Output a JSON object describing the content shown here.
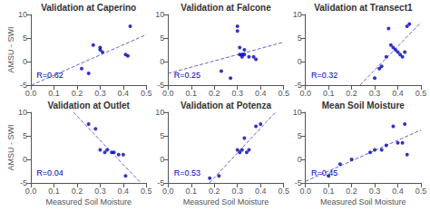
{
  "chart_data": [
    {
      "type": "scatter",
      "title": "Validation at Caperino",
      "annotation": "R=0.62",
      "ylabel": "AMSU - SWI",
      "series": [
        {
          "type": "scatter",
          "color": "#0000bb",
          "x": [
            0.22,
            0.25,
            0.27,
            0.3,
            0.3,
            0.31,
            0.41,
            0.42,
            0.43
          ],
          "values": [
            -1.5,
            -2.5,
            3.5,
            3.0,
            2.5,
            2.0,
            1.5,
            1.2,
            7.5
          ]
        },
        {
          "type": "line",
          "line_style": "dashed",
          "color": "#6666cc",
          "x": [
            0.0025,
            0.5
          ],
          "values": [
            -5,
            5.717
          ]
        }
      ],
      "xlim": [
        0,
        0.5
      ],
      "ylim": [
        -5,
        10
      ],
      "xticks": [
        {
          "value": 0,
          "label": "0.0"
        },
        0.1,
        0.2,
        0.3,
        0.4,
        0.5
      ],
      "yticks": [
        -5,
        0,
        5,
        10
      ],
      "grid": false
    },
    {
      "type": "scatter",
      "title": "Validation at Falcone",
      "annotation": "R=0.25",
      "series": [
        {
          "type": "scatter",
          "color": "#0000bb",
          "x": [
            0.23,
            0.27,
            0.3,
            0.3,
            0.31,
            0.31,
            0.32,
            0.32,
            0.33,
            0.33,
            0.35,
            0.37,
            0.38
          ],
          "values": [
            -2.0,
            -3.5,
            7.5,
            6.5,
            3.0,
            1.5,
            1.5,
            1.0,
            2.5,
            1.5,
            1.0,
            1.0,
            0.5
          ]
        },
        {
          "type": "line",
          "line_style": "dashed",
          "color": "#6666cc",
          "x": [
            0,
            0.5
          ],
          "values": [
            -2.5107,
            4.1203
          ]
        }
      ],
      "xlim": [
        0,
        0.5
      ],
      "ylim": [
        -5,
        10
      ],
      "xticks": [
        {
          "value": 0,
          "label": "0.0"
        },
        0.1,
        0.2,
        0.3,
        0.4,
        0.5
      ],
      "yticks": [
        -5,
        0,
        5,
        10
      ],
      "grid": false
    },
    {
      "type": "scatter",
      "title": "Validation at Transect1",
      "annotation": "R=0.32",
      "series": [
        {
          "type": "scatter",
          "color": "#0000bb",
          "x": [
            0.3,
            0.32,
            0.33,
            0.35,
            0.36,
            0.37,
            0.38,
            0.39,
            0.4,
            0.41,
            0.42,
            0.43,
            0.44,
            0.45
          ],
          "values": [
            -3.5,
            -1.5,
            -1.0,
            1.0,
            7.0,
            3.5,
            3.0,
            2.5,
            2.0,
            1.5,
            1.0,
            2.0,
            7.5,
            8.0
          ]
        },
        {
          "type": "line",
          "line_style": "dashed",
          "color": "#6666cc",
          "x": [
            0.2363,
            0.5
          ],
          "values": [
            -5,
            8.3029
          ]
        }
      ],
      "xlim": [
        0,
        0.5
      ],
      "ylim": [
        -5,
        10
      ],
      "xticks": [
        {
          "value": 0,
          "label": "0.0"
        },
        0.1,
        0.2,
        0.3,
        0.4,
        0.5
      ],
      "yticks": [
        -5,
        0,
        5,
        10
      ],
      "grid": false
    },
    {
      "type": "scatter",
      "title": "Validation at Outlet",
      "annotation": "R=0.04",
      "xlabel": "Measured Soil Moisture",
      "ylabel": "AMSU - SWI",
      "series": [
        {
          "type": "scatter",
          "color": "#0000bb",
          "x": [
            0.25,
            0.28,
            0.3,
            0.32,
            0.33,
            0.35,
            0.36,
            0.38,
            0.4,
            0.41
          ],
          "values": [
            7.5,
            6.5,
            2.0,
            1.5,
            2.0,
            1.5,
            1.5,
            1.0,
            1.0,
            -3.5
          ]
        },
        {
          "type": "line",
          "line_style": "dashed",
          "color": "#6666cc",
          "x": [
            0.1844,
            0.476
          ],
          "values": [
            10,
            -5
          ]
        }
      ],
      "xlim": [
        0,
        0.5
      ],
      "ylim": [
        -5,
        10
      ],
      "xticks": [
        {
          "value": 0,
          "label": "0.0"
        },
        0.1,
        0.2,
        0.3,
        0.4,
        0.5
      ],
      "yticks": [
        -5,
        0,
        5,
        10
      ],
      "grid": false
    },
    {
      "type": "scatter",
      "title": "Validation at Potenza",
      "annotation": "R=0.53",
      "xlabel": "Measured Soil Moisture",
      "series": [
        {
          "type": "scatter",
          "color": "#0000bb",
          "x": [
            0.18,
            0.22,
            0.3,
            0.31,
            0.32,
            0.33,
            0.34,
            0.35,
            0.38,
            0.4
          ],
          "values": [
            -4.0,
            -3.5,
            2.0,
            1.5,
            2.0,
            4.5,
            1.5,
            2.0,
            7.0,
            7.5
          ]
        },
        {
          "type": "line",
          "line_style": "dashed",
          "color": "#6666cc",
          "x": [
            0.1787,
            0.4644
          ],
          "values": [
            -5,
            10
          ]
        }
      ],
      "xlim": [
        0,
        0.5
      ],
      "ylim": [
        -5,
        10
      ],
      "xticks": [
        {
          "value": 0,
          "label": "0.0"
        },
        0.1,
        0.2,
        0.3,
        0.4,
        0.5
      ],
      "yticks": [
        -5,
        0,
        5,
        10
      ],
      "grid": false
    },
    {
      "type": "scatter",
      "title": "Mean Soil Moisture",
      "annotation": "R=0.45",
      "xlabel": "Measured Soil Moisture",
      "series": [
        {
          "type": "scatter",
          "color": "#0000bb",
          "x": [
            0.1,
            0.15,
            0.2,
            0.28,
            0.3,
            0.33,
            0.35,
            0.38,
            0.4,
            0.42,
            0.43,
            0.44
          ],
          "values": [
            -3.5,
            -1.0,
            0.0,
            1.5,
            2.0,
            2.0,
            3.0,
            7.0,
            3.5,
            3.5,
            7.5,
            1.0
          ]
        },
        {
          "type": "line",
          "line_style": "dashed",
          "color": "#6666cc",
          "x": [
            0,
            0.5
          ],
          "values": [
            -4.6718,
            6.2491
          ]
        }
      ],
      "xlim": [
        0,
        0.5
      ],
      "ylim": [
        -5,
        10
      ],
      "xticks": [
        {
          "value": 0,
          "label": "0.0"
        },
        0.1,
        0.2,
        0.3,
        0.4,
        0.5
      ],
      "yticks": [
        -5,
        0,
        5,
        10
      ],
      "grid": false
    }
  ]
}
